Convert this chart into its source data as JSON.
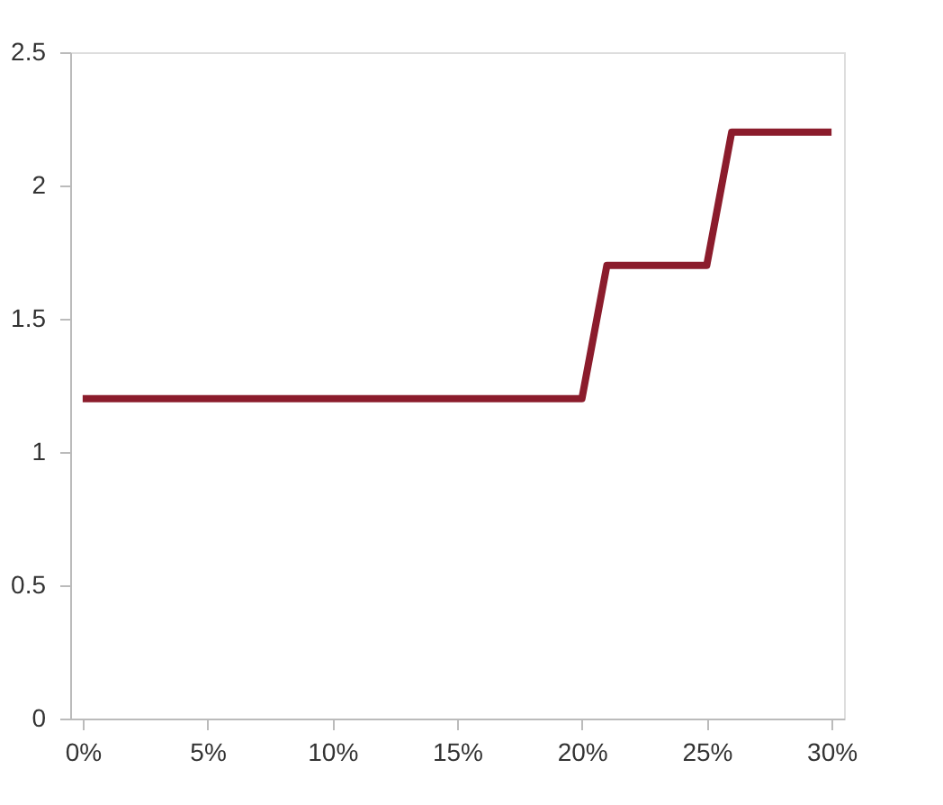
{
  "chart_data": {
    "type": "line",
    "x": [
      0,
      20,
      21,
      25,
      26,
      30
    ],
    "series": [
      {
        "color": "#8b1c2c",
        "values": [
          1.2,
          1.2,
          1.7,
          1.7,
          2.2,
          2.2
        ]
      }
    ],
    "xlim": [
      -0.5,
      30.5
    ],
    "xticks": [
      {
        "value": 0,
        "label": "0%"
      },
      {
        "value": 5,
        "label": "5%"
      },
      {
        "value": 10,
        "label": "10%"
      },
      {
        "value": 15,
        "label": "15%"
      },
      {
        "value": 20,
        "label": "20%"
      },
      {
        "value": 25,
        "label": "25%"
      },
      {
        "value": 30,
        "label": "30%"
      }
    ],
    "ylim": [
      0,
      2.5
    ],
    "yticks": [
      0,
      0.5,
      1,
      1.5,
      2,
      2.5
    ],
    "grid": false,
    "marker": "none",
    "line_style": "solid"
  }
}
